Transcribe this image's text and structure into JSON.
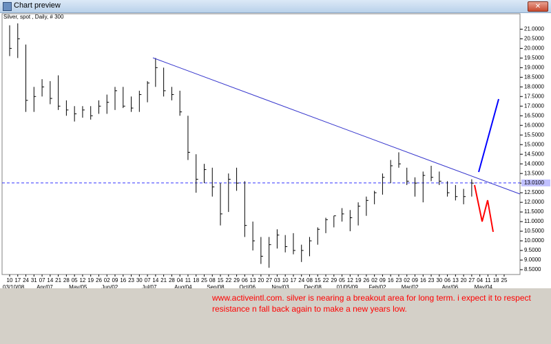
{
  "window": {
    "title": "Chart preview"
  },
  "chart_data": {
    "type": "ohlc",
    "title": "Silver, spot , Daily, # 300",
    "color": "#000000",
    "categories": [
      "10",
      "17",
      "24",
      "31",
      "07",
      "14",
      "21",
      "28",
      "05",
      "12",
      "19",
      "26",
      "02",
      "09",
      "16",
      "23",
      "30",
      "07",
      "14",
      "21",
      "28",
      "04",
      "11",
      "18",
      "25",
      "08",
      "15",
      "22",
      "29",
      "06",
      "13",
      "20",
      "27",
      "03",
      "10",
      "17",
      "24",
      "08",
      "15",
      "22",
      "29",
      "05",
      "12",
      "19",
      "26",
      "02",
      "09",
      "16",
      "23",
      "02",
      "09",
      "16",
      "23",
      "30",
      "06",
      "13",
      "20",
      "27",
      "04",
      "11",
      "18",
      "25"
    ],
    "months": [
      "03/10/08",
      "Apr/07",
      "May/05",
      "Jun/02",
      "Jul/07",
      "Aug/04",
      "Sep/08",
      "Oct/06",
      "Nov/03",
      "Dec/08",
      "01/05/09",
      "Feb/02",
      "Mar/02",
      "Apr/06",
      "May/04"
    ],
    "series": [
      {
        "name": "High",
        "values": [
          21.2,
          21.3,
          20.2,
          18.0,
          18.4,
          18.3,
          18.6,
          17.3,
          17.0,
          17.0,
          17.0,
          17.3,
          17.6,
          18.0,
          18.0,
          17.5,
          17.8,
          18.3,
          19.5,
          19.0,
          18.0,
          17.8,
          16.5,
          14.5,
          14.0,
          13.8,
          13.0,
          13.5,
          13.8,
          13.1,
          11.0,
          10.2,
          10.2,
          10.6,
          10.3,
          10.4,
          9.8,
          10.2,
          10.7,
          11.2,
          11.3,
          11.7,
          11.6,
          12.0,
          12.3,
          12.6,
          13.5,
          14.2,
          14.6,
          13.8,
          13.3,
          13.6,
          13.9,
          13.6,
          13.1,
          12.9,
          12.7,
          13.2,
          null,
          null,
          null,
          null
        ]
      },
      {
        "name": "Low",
        "values": [
          19.6,
          19.5,
          16.7,
          16.7,
          17.5,
          17.1,
          16.8,
          16.5,
          16.2,
          16.4,
          16.3,
          16.6,
          16.6,
          16.8,
          16.9,
          16.7,
          16.7,
          17.2,
          18.0,
          17.5,
          17.3,
          16.5,
          14.2,
          12.5,
          13.0,
          12.3,
          10.8,
          11.5,
          12.6,
          10.2,
          9.5,
          8.8,
          8.6,
          9.6,
          9.4,
          9.3,
          8.9,
          9.2,
          9.8,
          10.4,
          10.7,
          11.0,
          10.5,
          10.8,
          11.3,
          11.9,
          12.4,
          13.0,
          13.8,
          12.9,
          12.3,
          12.0,
          13.1,
          12.9,
          12.3,
          12.1,
          11.9,
          12.3,
          null,
          null,
          null,
          null
        ]
      },
      {
        "name": "Close",
        "values": [
          20.0,
          20.5,
          17.3,
          17.5,
          18.0,
          17.4,
          17.0,
          16.8,
          16.6,
          16.8,
          16.5,
          17.0,
          17.2,
          17.8,
          17.0,
          16.9,
          17.6,
          18.2,
          19.0,
          17.8,
          17.6,
          16.7,
          14.6,
          13.2,
          13.7,
          12.8,
          11.4,
          13.2,
          13.0,
          10.8,
          10.0,
          9.2,
          9.8,
          10.3,
          9.7,
          9.5,
          9.5,
          10.0,
          10.6,
          11.1,
          11.3,
          11.4,
          11.2,
          11.8,
          12.1,
          12.5,
          13.3,
          13.9,
          14.0,
          13.1,
          13.0,
          13.4,
          13.3,
          13.1,
          12.5,
          12.3,
          12.3,
          13.0,
          null,
          null,
          null,
          null
        ]
      }
    ],
    "ylim": [
      8.25,
      21.8
    ],
    "yticks": [
      {
        "value": 8.5,
        "label": "8.5000"
      },
      {
        "value": 9,
        "label": "9.0000"
      },
      {
        "value": 9.5,
        "label": "9.5000"
      },
      {
        "value": 10,
        "label": "10.0000"
      },
      {
        "value": 10.5,
        "label": "10.5000"
      },
      {
        "value": 11,
        "label": "11.0000"
      },
      {
        "value": 11.5,
        "label": "11.5000"
      },
      {
        "value": 12,
        "label": "12.0000"
      },
      {
        "value": 12.5,
        "label": "12.5000"
      },
      {
        "value": 13,
        "label": "13.0000"
      },
      {
        "value": 13.5,
        "label": "13.5000"
      },
      {
        "value": 14,
        "label": "14.0000"
      },
      {
        "value": 14.5,
        "label": "14.5000"
      },
      {
        "value": 15,
        "label": "15.0000"
      },
      {
        "value": 15.5,
        "label": "15.5000"
      },
      {
        "value": 16,
        "label": "16.0000"
      },
      {
        "value": 16.5,
        "label": "16.5000"
      },
      {
        "value": 17,
        "label": "17.0000"
      },
      {
        "value": 17.5,
        "label": "17.5000"
      },
      {
        "value": 18,
        "label": "18.0000"
      },
      {
        "value": 18.5,
        "label": "18.5000"
      },
      {
        "value": 19,
        "label": "19.0000"
      },
      {
        "value": 19.5,
        "label": "19.5000"
      },
      {
        "value": 20,
        "label": "20.0000"
      },
      {
        "value": 20.5,
        "label": "20.5000"
      },
      {
        "value": 21,
        "label": "21.0000"
      }
    ],
    "level": {
      "value": 13.01,
      "label": "13.0100",
      "color": "#3333ff"
    },
    "grid": false,
    "annotation": [
      "www.activeintl.com. silver is nearing a breakout area for long term. i expect it to respect",
      "resistance n fall back again to make a new years low."
    ]
  }
}
